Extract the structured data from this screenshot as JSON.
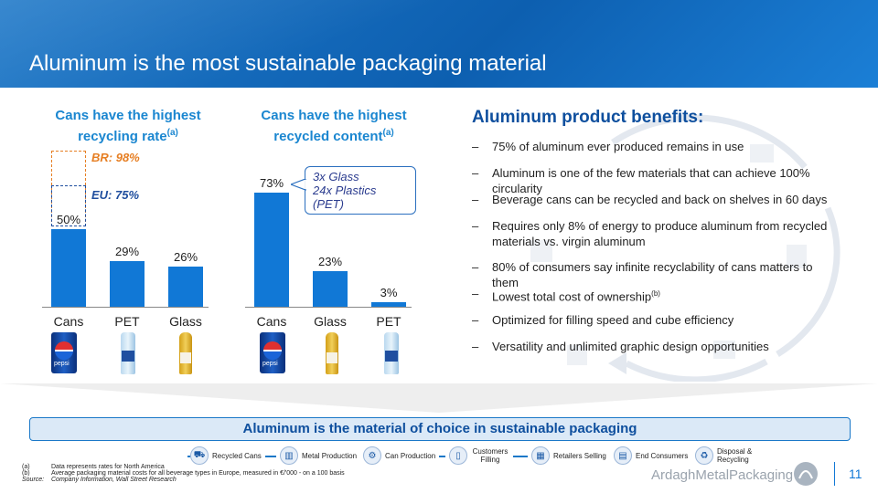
{
  "header": {
    "title": "Aluminum is the most sustainable packaging material"
  },
  "chart_data": [
    {
      "type": "bar",
      "title": "Cans have the highest recycling rate",
      "title_sup": "(a)",
      "title_line1": "Cans have the highest",
      "title_line2": "recycling rate",
      "categories": [
        "Cans",
        "PET",
        "Glass"
      ],
      "values": [
        50,
        29,
        26
      ],
      "value_labels": [
        "50%",
        "29%",
        "26%"
      ],
      "ylim": [
        0,
        100
      ],
      "annotations": [
        {
          "text": "BR: 98%",
          "value": 98,
          "color": "#e67e22"
        },
        {
          "text": "EU: 75%",
          "value": 75,
          "color": "#1f4e9e"
        }
      ]
    },
    {
      "type": "bar",
      "title": "Cans have the highest recycled content",
      "title_sup": "(a)",
      "title_line1": "Cans have the highest",
      "title_line2": "recycled content",
      "categories": [
        "Cans",
        "Glass",
        "PET"
      ],
      "values": [
        73,
        23,
        3
      ],
      "value_labels": [
        "73%",
        "23%",
        "3%"
      ],
      "ylim": [
        0,
        100
      ],
      "callout": [
        "3x Glass",
        "24x Plastics (PET)"
      ]
    }
  ],
  "benefits": {
    "title": "Aluminum product benefits:",
    "items": [
      {
        "text": "75% of aluminum ever produced remains in use"
      },
      {
        "text": "Aluminum is one of the few materials that can achieve 100% circularity"
      },
      {
        "text": "Beverage cans can be recycled and back on shelves in 60 days"
      },
      {
        "text": "Requires only 8% of energy to produce aluminum from recycled materials vs. virgin aluminum"
      },
      {
        "text": "80% of consumers say infinite recyclability of cans matters to them"
      },
      {
        "text": "Lowest total cost of ownership",
        "sup": "(b)"
      },
      {
        "text": "Optimized for filling speed and cube efficiency"
      },
      {
        "text": "Versatility and unlimited graphic design opportunities"
      }
    ]
  },
  "banner": "Aluminum is the material of choice in sustainable packaging",
  "process": [
    {
      "label": "Recycled Cans",
      "icon": "truck-icon"
    },
    {
      "label": "Metal Production",
      "icon": "factory-icon"
    },
    {
      "label": "Can Production",
      "icon": "machine-icon"
    },
    {
      "label": "Customers Filling",
      "icon": "bottle-icon"
    },
    {
      "label": "Retailers Selling",
      "icon": "store-icon"
    },
    {
      "label": "End Consumers",
      "icon": "shelf-icon"
    },
    {
      "label": "Disposal & Recycling",
      "icon": "recycle-icon"
    }
  ],
  "footnotes": [
    {
      "key": "(a)",
      "text": "Data represents rates for North America"
    },
    {
      "key": "(b)",
      "text": "Average packaging material costs for all beverage types in Europe, measured in €/'000 - on a 100 basis"
    },
    {
      "key": "Source:",
      "text": "Company Information, Wall Street Research"
    }
  ],
  "brand": "ArdaghMetalPackaging",
  "page_number": "11",
  "colors": {
    "bar": "#1178d6",
    "br": "#e67e22",
    "eu": "#1f4e9e",
    "header": "#1469bf"
  },
  "products": {
    "can_text": "pepsi"
  }
}
